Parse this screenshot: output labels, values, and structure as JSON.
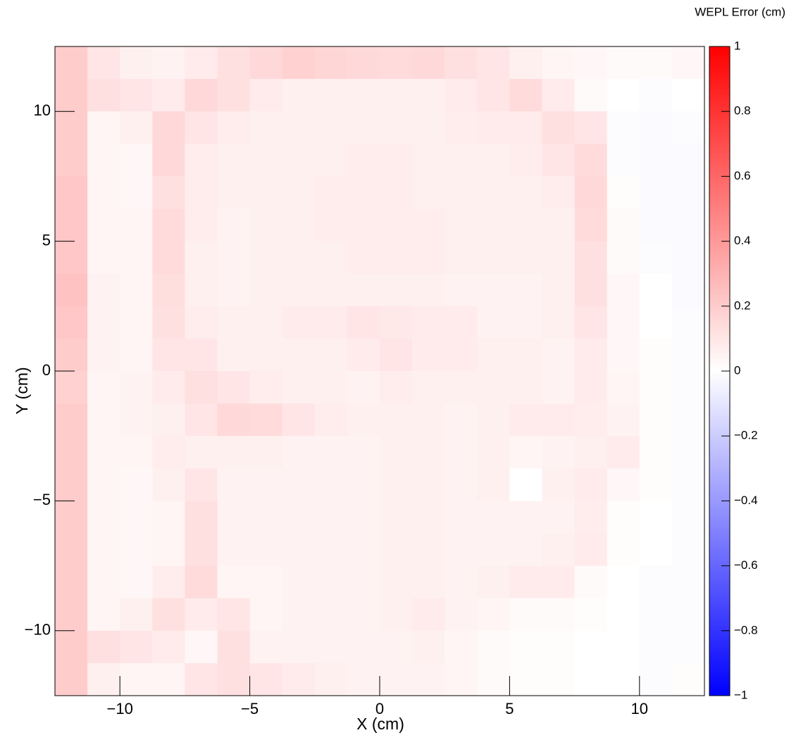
{
  "chart_data": {
    "type": "heatmap",
    "x_label": "X (cm)",
    "y_label": "Y (cm)",
    "colorbar_label": "WEPL Error (cm)",
    "xlim": [
      -12.5,
      12.5
    ],
    "ylim": [
      -12.5,
      12.5
    ],
    "xticks": [
      {
        "value": -10,
        "label": "−10"
      },
      {
        "value": -5,
        "label": "−5"
      },
      0,
      5,
      10
    ],
    "yticks": [
      {
        "value": -10,
        "label": "−10"
      },
      {
        "value": -5,
        "label": "−5"
      },
      0,
      5,
      10
    ],
    "zlim": [
      -1,
      1
    ],
    "zticks": [
      {
        "value": -1,
        "label": "−1"
      },
      {
        "value": -0.8,
        "label": "−0.8"
      },
      {
        "value": -0.6,
        "label": "−0.6"
      },
      {
        "value": -0.4,
        "label": "−0.4"
      },
      {
        "value": -0.2,
        "label": "−0.2"
      },
      0,
      0.2,
      0.4,
      0.6,
      0.8,
      1
    ],
    "colormap": [
      "#0000ff",
      "#ffffff",
      "#ff0000"
    ],
    "z": [
      [
        0.2,
        0.1,
        0.06,
        0.05,
        0.08,
        0.12,
        0.15,
        0.18,
        0.16,
        0.15,
        0.14,
        0.15,
        0.12,
        0.1,
        0.06,
        0.04,
        0.03,
        0.02,
        0.02,
        0.03
      ],
      [
        0.2,
        0.12,
        0.1,
        0.08,
        0.15,
        0.12,
        0.08,
        0.06,
        0.06,
        0.06,
        0.06,
        0.06,
        0.08,
        0.1,
        0.14,
        0.08,
        0.02,
        0,
        -0.01,
        0
      ],
      [
        0.2,
        0.04,
        0.06,
        0.15,
        0.1,
        0.07,
        0.06,
        0.06,
        0.06,
        0.06,
        0.06,
        0.06,
        0.07,
        0.08,
        0.08,
        0.12,
        0.1,
        -0.01,
        -0.02,
        -0.01
      ],
      [
        0.2,
        0.04,
        0.03,
        0.15,
        0.07,
        0.06,
        0.06,
        0.06,
        0.06,
        0.07,
        0.07,
        0.06,
        0.06,
        0.06,
        0.07,
        0.1,
        0.14,
        -0.01,
        -0.02,
        -0.02
      ],
      [
        0.22,
        0.04,
        0.03,
        0.12,
        0.07,
        0.06,
        0.06,
        0.06,
        0.07,
        0.07,
        0.07,
        0.06,
        0.06,
        0.06,
        0.06,
        0.07,
        0.15,
        0.01,
        -0.02,
        -0.02
      ],
      [
        0.22,
        0.04,
        0.04,
        0.14,
        0.07,
        0.05,
        0.06,
        0.06,
        0.07,
        0.07,
        0.07,
        0.07,
        0.06,
        0.06,
        0.06,
        0.06,
        0.14,
        0.02,
        -0.02,
        -0.02
      ],
      [
        0.22,
        0.04,
        0.04,
        0.14,
        0.06,
        0.05,
        0.06,
        0.06,
        0.06,
        0.07,
        0.07,
        0.07,
        0.06,
        0.06,
        0.06,
        0.06,
        0.12,
        0.02,
        -0.01,
        -0.02
      ],
      [
        0.24,
        0.05,
        0.04,
        0.13,
        0.06,
        0.05,
        0.06,
        0.06,
        0.06,
        0.06,
        0.06,
        0.06,
        0.05,
        0.05,
        0.05,
        0.06,
        0.12,
        0.03,
        0,
        -0.02
      ],
      [
        0.22,
        0.05,
        0.04,
        0.12,
        0.07,
        0.06,
        0.06,
        0.08,
        0.08,
        0.1,
        0.09,
        0.08,
        0.08,
        0.05,
        0.05,
        0.06,
        0.1,
        0.03,
        0,
        -0.01
      ],
      [
        0.2,
        0.05,
        0.04,
        0.1,
        0.1,
        0.06,
        0.06,
        0.06,
        0.06,
        0.08,
        0.1,
        0.08,
        0.08,
        0.06,
        0.06,
        0.05,
        0.08,
        0.03,
        0.01,
        -0.01
      ],
      [
        0.18,
        0.04,
        0.05,
        0.08,
        0.12,
        0.1,
        0.07,
        0.06,
        0.06,
        0.05,
        0.07,
        0.06,
        0.06,
        0.06,
        0.06,
        0.05,
        0.08,
        0.04,
        0.01,
        -0.01
      ],
      [
        0.2,
        0.04,
        0.05,
        0.06,
        0.1,
        0.15,
        0.14,
        0.1,
        0.07,
        0.06,
        0.06,
        0.06,
        0.05,
        0.06,
        0.08,
        0.08,
        0.07,
        0.05,
        0.01,
        -0.01
      ],
      [
        0.2,
        0.04,
        0.04,
        0.07,
        0.06,
        0.06,
        0.06,
        0.05,
        0.05,
        0.05,
        0.06,
        0.06,
        0.05,
        0.06,
        0.04,
        0.05,
        0.06,
        0.08,
        0.01,
        -0.01
      ],
      [
        0.2,
        0.04,
        0.03,
        0.06,
        0.1,
        0.05,
        0.05,
        0.05,
        0.05,
        0.05,
        0.06,
        0.06,
        0.05,
        0.06,
        0,
        0.06,
        0.08,
        0.03,
        0.01,
        -0.01
      ],
      [
        0.2,
        0.04,
        0.03,
        0.04,
        0.12,
        0.05,
        0.05,
        0.05,
        0.05,
        0.05,
        0.06,
        0.06,
        0.05,
        0.05,
        0.05,
        0.05,
        0.07,
        0.01,
        0,
        -0.01
      ],
      [
        0.2,
        0.04,
        0.03,
        0.04,
        0.12,
        0.05,
        0.05,
        0.05,
        0.05,
        0.05,
        0.06,
        0.06,
        0.05,
        0.05,
        0.05,
        0.06,
        0.08,
        0.01,
        0,
        -0.01
      ],
      [
        0.2,
        0.04,
        0.03,
        0.07,
        0.14,
        0.04,
        0.04,
        0.05,
        0.05,
        0.05,
        0.06,
        0.06,
        0.05,
        0.06,
        0.08,
        0.08,
        0.02,
        0,
        -0.01,
        -0.01
      ],
      [
        0.2,
        0.04,
        0.06,
        0.12,
        0.08,
        0.1,
        0.04,
        0.05,
        0.05,
        0.05,
        0.06,
        0.08,
        0.05,
        0.04,
        0.02,
        0.02,
        0.01,
        0,
        -0.01,
        -0.01
      ],
      [
        0.2,
        0.12,
        0.1,
        0.08,
        0.03,
        0.12,
        0.05,
        0.05,
        0.05,
        0.05,
        0.05,
        0.06,
        0.04,
        0.02,
        0.01,
        0.01,
        0,
        0,
        -0.01,
        -0.01
      ],
      [
        0.2,
        0.06,
        0.04,
        0.04,
        0.1,
        0.12,
        0.1,
        0.08,
        0.06,
        0.05,
        0.05,
        0.05,
        0.04,
        0.02,
        0.01,
        0.01,
        0,
        0,
        -0.01,
        0.01
      ]
    ]
  }
}
